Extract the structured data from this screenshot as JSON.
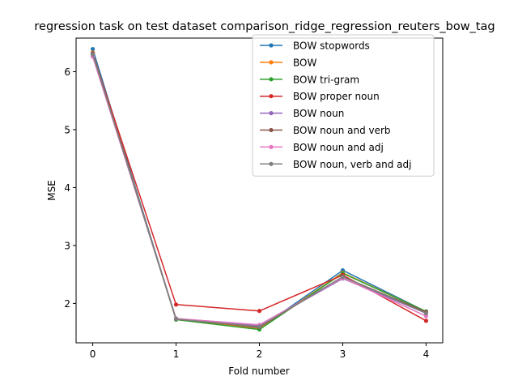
{
  "chart_data": {
    "type": "line",
    "title": "regression task on test dataset comparison_ridge_regression_reuters_bow_tag",
    "xlabel": "Fold number",
    "ylabel": "MSE",
    "x": [
      0,
      1,
      2,
      3,
      4
    ],
    "x_ticks": [
      "0",
      "1",
      "2",
      "3",
      "4"
    ],
    "y_ticks": [
      "2",
      "3",
      "4",
      "5",
      "6"
    ],
    "xlim": [
      -0.2,
      4.2
    ],
    "ylim": [
      1.32,
      6.58
    ],
    "grid": false,
    "legend_position": "top-right",
    "series": [
      {
        "name": "BOW stopwords",
        "color": "#1f77b4",
        "values": [
          6.39,
          1.73,
          1.57,
          2.57,
          1.86
        ]
      },
      {
        "name": "BOW",
        "color": "#ff7f0e",
        "values": [
          6.33,
          1.73,
          1.56,
          2.53,
          1.86
        ]
      },
      {
        "name": "BOW tri-gram",
        "color": "#2ca02c",
        "values": [
          6.31,
          1.72,
          1.55,
          2.52,
          1.86
        ]
      },
      {
        "name": "BOW proper noun",
        "color": "#d62728",
        "values": [
          6.31,
          1.98,
          1.87,
          2.49,
          1.7
        ]
      },
      {
        "name": "BOW noun",
        "color": "#9467bd",
        "values": [
          6.27,
          1.74,
          1.62,
          2.43,
          1.83
        ]
      },
      {
        "name": "BOW noun and verb",
        "color": "#8c564b",
        "values": [
          6.32,
          1.73,
          1.59,
          2.46,
          1.85
        ]
      },
      {
        "name": "BOW noun and adj",
        "color": "#e377c2",
        "values": [
          6.26,
          1.74,
          1.63,
          2.44,
          1.78
        ]
      },
      {
        "name": "BOW noun, verb and adj",
        "color": "#7f7f7f",
        "values": [
          6.3,
          1.73,
          1.6,
          2.46,
          1.83
        ]
      }
    ]
  }
}
